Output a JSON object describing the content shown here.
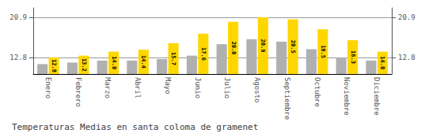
{
  "chart_data": {
    "type": "bar",
    "title": "Temperaturas Medias en santa coloma de gramenet",
    "categories": [
      "Enero",
      "Febrero",
      "Marzo",
      "Abril",
      "Mayo",
      "Junio",
      "Julio",
      "Agosto",
      "Septiembre",
      "Octubre",
      "Noviembre",
      "Diciembre"
    ],
    "series": [
      {
        "color": "#B0B0B0",
        "values": [
          11.5,
          11.8,
          12.2,
          12.2,
          12.5,
          13.2,
          15.5,
          16.5,
          16.0,
          14.5,
          12.8,
          12.2
        ]
      },
      {
        "color": "#FFD700",
        "values": [
          12.8,
          13.2,
          14.0,
          14.4,
          15.7,
          17.6,
          20.0,
          20.9,
          20.5,
          18.5,
          16.3,
          14.0
        ],
        "data_labels": true,
        "value_labels": [
          "12.8",
          "13.2",
          "14.0",
          "14.4",
          "15.7",
          "17.6",
          "20.0",
          "20.9",
          "20.5",
          "18.5",
          "16.3",
          "14.0"
        ]
      }
    ],
    "ylim": [
      9.5,
      22.8
    ],
    "yticks": [
      12.8,
      20.9
    ],
    "y2lim": [
      9.5,
      22.8
    ],
    "y2ticks": [
      12.8,
      20.9
    ],
    "grid": true
  }
}
